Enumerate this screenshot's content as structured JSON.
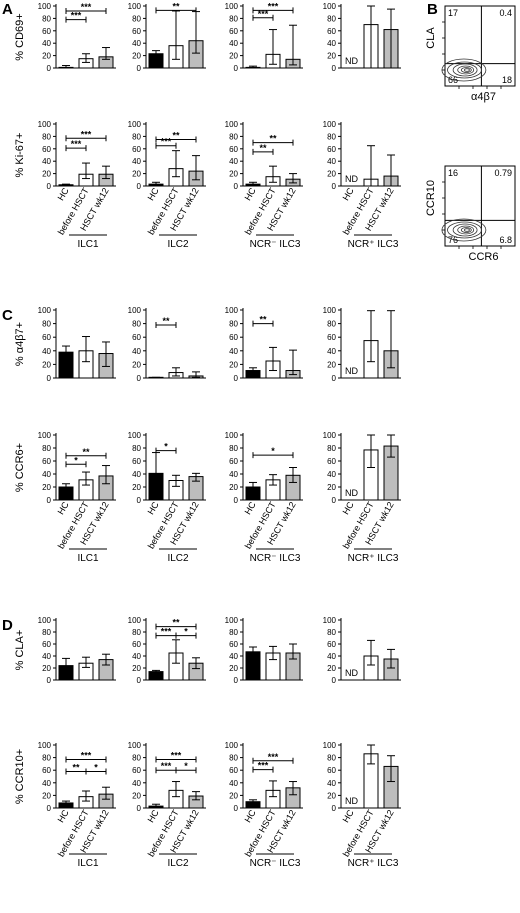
{
  "panel_letters": [
    "A",
    "B",
    "C",
    "D"
  ],
  "nd_label": "ND",
  "colors": {
    "hc": "#000000",
    "before": "#ffffff",
    "wk12": "#bdbdbd"
  },
  "chart_data": [
    {
      "type": "bar",
      "panel": "A",
      "ylabels": [
        "% CD69+",
        "% Ki-67+"
      ],
      "categories": [
        "HC",
        "before HSCT",
        "HSCT wk12"
      ],
      "group_labels": [
        "ILC1",
        "ILC2",
        "NCR⁻ ILC3",
        "NCR⁺ ILC3"
      ],
      "show_xticks": true,
      "rows": [
        {
          "subplots": [
            {
              "ylim": [
                0,
                100
              ],
              "values": [
                1,
                15,
                18
              ],
              "err": [
                [
                  1,
                  6,
                  4
                ],
                [
                  3,
                  8,
                  15
                ]
              ],
              "nd": false,
              "brackets": [
                {
                  "from": 0,
                  "to": 2,
                  "label": "***",
                  "y": 92
                },
                {
                  "from": 0,
                  "to": 1,
                  "label": "***",
                  "y": 78
                }
              ]
            },
            {
              "ylim": [
                0,
                100
              ],
              "values": [
                23,
                36,
                44
              ],
              "err": [
                [
                  5,
                  22,
                  20
                ],
                [
                  5,
                  56,
                  47
                ]
              ],
              "nd": false,
              "brackets": [
                {
                  "from": 0,
                  "to": 2,
                  "label": "**",
                  "y": 93
                }
              ]
            },
            {
              "ylim": [
                0,
                100
              ],
              "values": [
                1,
                22,
                14
              ],
              "err": [
                [
                  1,
                  16,
                  9
                ],
                [
                  2,
                  40,
                  55
                ]
              ],
              "nd": false,
              "brackets": [
                {
                  "from": 0,
                  "to": 2,
                  "label": "***",
                  "y": 93
                },
                {
                  "from": 0,
                  "to": 1,
                  "label": "***",
                  "y": 81
                }
              ]
            },
            {
              "ylim": [
                0,
                100
              ],
              "values": [
                null,
                70,
                62
              ],
              "err": [
                [
                  0,
                  70,
                  62
                ],
                [
                  0,
                  30,
                  33
                ]
              ],
              "nd": true,
              "brackets": []
            }
          ]
        },
        {
          "subplots": [
            {
              "ylim": [
                0,
                100
              ],
              "values": [
                2,
                19,
                19
              ],
              "err": [
                [
                  1,
                  7,
                  7
                ],
                [
                  1,
                  18,
                  13
                ]
              ],
              "nd": false,
              "brackets": [
                {
                  "from": 0,
                  "to": 2,
                  "label": "***",
                  "y": 77
                },
                {
                  "from": 0,
                  "to": 1,
                  "label": "***",
                  "y": 61
                }
              ]
            },
            {
              "ylim": [
                0,
                100
              ],
              "values": [
                3,
                28,
                24
              ],
              "err": [
                [
                  2,
                  13,
                  14
                ],
                [
                  3,
                  29,
                  25
                ]
              ],
              "nd": false,
              "brackets": [
                {
                  "from": 0,
                  "to": 2,
                  "label": "**",
                  "y": 75
                },
                {
                  "from": 0,
                  "to": 1,
                  "label": "***",
                  "y": 65
                }
              ]
            },
            {
              "ylim": [
                0,
                100
              ],
              "values": [
                3,
                15,
                11
              ],
              "err": [
                [
                  2,
                  9,
                  6
                ],
                [
                  3,
                  17,
                  9
                ]
              ],
              "nd": false,
              "brackets": [
                {
                  "from": 0,
                  "to": 2,
                  "label": "**",
                  "y": 70
                },
                {
                  "from": 0,
                  "to": 1,
                  "label": "**",
                  "y": 55
                }
              ]
            },
            {
              "ylim": [
                0,
                100
              ],
              "values": [
                null,
                11,
                16
              ],
              "err": [
                [
                  0,
                  11,
                  16
                ],
                [
                  0,
                  54,
                  34
                ]
              ],
              "nd": true,
              "brackets": []
            }
          ]
        }
      ]
    },
    {
      "type": "scatter",
      "panel": "B",
      "plots": [
        {
          "ylabel": "CLA",
          "xlabel": "α4β7",
          "quadrants": {
            "tl": "17",
            "tr": "0.4",
            "bl": "66",
            "br": "18"
          }
        },
        {
          "ylabel": "CCR10",
          "xlabel": "CCR6",
          "quadrants": {
            "tl": "16",
            "tr": "0.79",
            "bl": "76",
            "br": "6.8"
          }
        }
      ]
    },
    {
      "type": "bar",
      "panel": "C",
      "ylabels": [
        "% α4β7+",
        "% CCR6+"
      ],
      "categories": [
        "HC",
        "before HSCT",
        "HSCT wk12"
      ],
      "group_labels": [
        "ILC1",
        "ILC2",
        "NCR⁻ ILC3",
        "NCR⁺ ILC3"
      ],
      "show_xticks": true,
      "rows": [
        {
          "subplots": [
            {
              "ylim": [
                0,
                100
              ],
              "values": [
                38,
                40,
                36
              ],
              "err": [
                [
                  8,
                  16,
                  19
                ],
                [
                  9,
                  21,
                  17
                ]
              ],
              "nd": false,
              "brackets": []
            },
            {
              "ylim": [
                0,
                100
              ],
              "values": [
                1,
                8,
                3
              ],
              "err": [
                [
                  1,
                  5,
                  2
                ],
                [
                  0,
                  7,
                  6
                ]
              ],
              "nd": false,
              "brackets": [
                {
                  "from": 0,
                  "to": 1,
                  "label": "**",
                  "y": 78
                }
              ]
            },
            {
              "ylim": [
                0,
                100
              ],
              "values": [
                11,
                25,
                11
              ],
              "err": [
                [
                  4,
                  14,
                  6
                ],
                [
                  4,
                  20,
                  30
                ]
              ],
              "nd": false,
              "brackets": [
                {
                  "from": 0,
                  "to": 1,
                  "label": "**",
                  "y": 80
                }
              ]
            },
            {
              "ylim": [
                0,
                100
              ],
              "values": [
                null,
                55,
                40
              ],
              "err": [
                [
                  0,
                  31,
                  25
                ],
                [
                  0,
                  44,
                  59
                ]
              ],
              "nd": true,
              "brackets": []
            }
          ]
        },
        {
          "subplots": [
            {
              "ylim": [
                0,
                100
              ],
              "values": [
                20,
                31,
                37
              ],
              "err": [
                [
                  5,
                  8,
                  12
                ],
                [
                  5,
                  12,
                  16
                ]
              ],
              "nd": false,
              "brackets": [
                {
                  "from": 0,
                  "to": 2,
                  "label": "**",
                  "y": 68
                },
                {
                  "from": 0,
                  "to": 1,
                  "label": "*",
                  "y": 55
                }
              ]
            },
            {
              "ylim": [
                0,
                100
              ],
              "values": [
                41,
                30,
                36
              ],
              "err": [
                [
                  25,
                  9,
                  7
                ],
                [
                  32,
                  8,
                  5
                ]
              ],
              "nd": false,
              "brackets": [
                {
                  "from": 0,
                  "to": 1,
                  "label": "*",
                  "y": 76
                }
              ]
            },
            {
              "ylim": [
                0,
                100
              ],
              "values": [
                20,
                31,
                38
              ],
              "err": [
                [
                  8,
                  8,
                  11
                ],
                [
                  7,
                  8,
                  12
                ]
              ],
              "nd": false,
              "brackets": [
                {
                  "from": 0,
                  "to": 2,
                  "label": "*",
                  "y": 69
                }
              ]
            },
            {
              "ylim": [
                0,
                100
              ],
              "values": [
                null,
                77,
                83
              ],
              "err": [
                [
                  0,
                  27,
                  17
                ],
                [
                  0,
                  23,
                  17
                ]
              ],
              "nd": true,
              "brackets": []
            }
          ]
        }
      ]
    },
    {
      "type": "bar",
      "panel": "D",
      "ylabels": [
        "% CLA+",
        "% CCR10+"
      ],
      "categories": [
        "HC",
        "before HSCT",
        "HSCT wk12"
      ],
      "group_labels": [
        "ILC1",
        "ILC2",
        "NCR⁻ ILC3",
        "NCR⁺ ILC3"
      ],
      "show_xticks": true,
      "rows": [
        {
          "subplots": [
            {
              "ylim": [
                0,
                100
              ],
              "values": [
                24,
                28,
                34
              ],
              "err": [
                [
                  11,
                  7,
                  9
                ],
                [
                  12,
                  10,
                  9
                ]
              ],
              "nd": false,
              "brackets": []
            },
            {
              "ylim": [
                0,
                100
              ],
              "values": [
                14,
                45,
                28
              ],
              "err": [
                [
                  2,
                  17,
                  9
                ],
                [
                  2,
                  22,
                  9
                ]
              ],
              "nd": false,
              "brackets": [
                {
                  "from": 0,
                  "to": 2,
                  "label": "**",
                  "y": 89
                },
                {
                  "from": 0,
                  "to": 1,
                  "label": "***",
                  "y": 74
                },
                {
                  "from": 1,
                  "to": 2,
                  "label": "*",
                  "y": 74
                }
              ]
            },
            {
              "ylim": [
                0,
                100
              ],
              "values": [
                47,
                45,
                45
              ],
              "err": [
                [
                  7,
                  11,
                  10
                ],
                [
                  8,
                  11,
                  15
                ]
              ],
              "nd": false,
              "brackets": []
            },
            {
              "ylim": [
                0,
                100
              ],
              "values": [
                null,
                40,
                35
              ],
              "err": [
                [
                  0,
                  15,
                  15
                ],
                [
                  0,
                  26,
                  16
                ]
              ],
              "nd": true,
              "brackets": []
            }
          ]
        },
        {
          "subplots": [
            {
              "ylim": [
                0,
                100
              ],
              "values": [
                8,
                18,
                22
              ],
              "err": [
                [
                  3,
                  7,
                  8
                ],
                [
                  3,
                  9,
                  11
                ]
              ],
              "nd": false,
              "brackets": [
                {
                  "from": 0,
                  "to": 2,
                  "label": "***",
                  "y": 77
                },
                {
                  "from": 0,
                  "to": 1,
                  "label": "**",
                  "y": 58
                },
                {
                  "from": 1,
                  "to": 2,
                  "label": "*",
                  "y": 58
                }
              ]
            },
            {
              "ylim": [
                0,
                100
              ],
              "values": [
                3,
                28,
                19
              ],
              "err": [
                [
                  2,
                  10,
                  6
                ],
                [
                  3,
                  14,
                  7
                ]
              ],
              "nd": false,
              "brackets": [
                {
                  "from": 0,
                  "to": 2,
                  "label": "***",
                  "y": 77
                },
                {
                  "from": 0,
                  "to": 1,
                  "label": "***",
                  "y": 60
                },
                {
                  "from": 1,
                  "to": 2,
                  "label": "*",
                  "y": 60
                }
              ]
            },
            {
              "ylim": [
                0,
                100
              ],
              "values": [
                10,
                28,
                32
              ],
              "err": [
                [
                  3,
                  10,
                  11
                ],
                [
                  3,
                  15,
                  10
                ]
              ],
              "nd": false,
              "brackets": [
                {
                  "from": 0,
                  "to": 2,
                  "label": "***",
                  "y": 75
                },
                {
                  "from": 0,
                  "to": 1,
                  "label": "***",
                  "y": 61
                }
              ]
            },
            {
              "ylim": [
                0,
                100
              ],
              "values": [
                null,
                86,
                66
              ],
              "err": [
                [
                  0,
                  16,
                  24
                ],
                [
                  0,
                  14,
                  17
                ]
              ],
              "nd": true,
              "brackets": []
            }
          ]
        }
      ]
    }
  ]
}
